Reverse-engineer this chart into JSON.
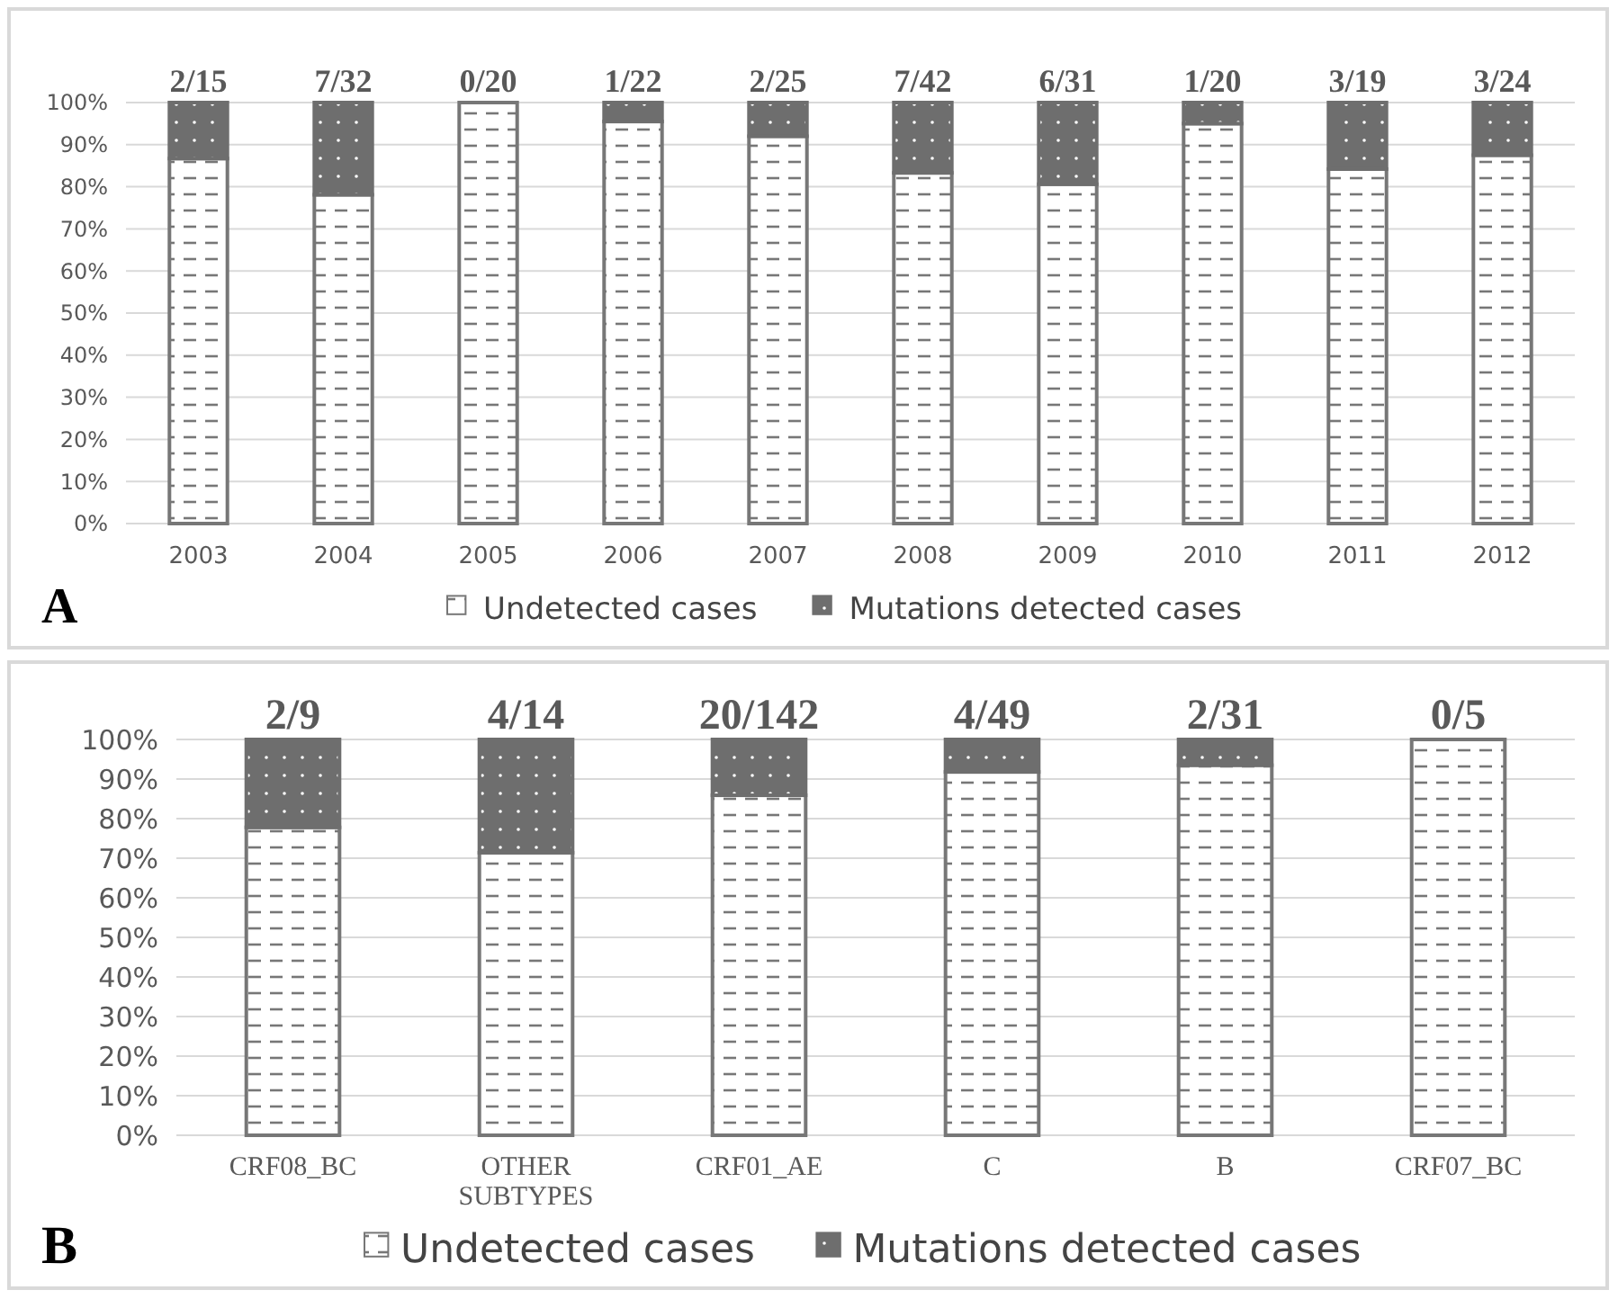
{
  "chart_data": [
    {
      "type": "bar",
      "stacked": true,
      "categories": [
        "2003",
        "2004",
        "2005",
        "2006",
        "2007",
        "2008",
        "2009",
        "2010",
        "2011",
        "2012"
      ],
      "series": [
        {
          "name": "Undetected cases",
          "color": "#777777",
          "values": [
            86.7,
            78.1,
            100,
            95.5,
            92,
            83.3,
            80.6,
            95,
            84.2,
            87.5
          ]
        },
        {
          "name": "Mutations detected cases",
          "color": "#6e6e6e",
          "values": [
            13.3,
            21.9,
            0,
            4.5,
            8,
            16.7,
            19.4,
            5,
            15.8,
            12.5
          ]
        }
      ],
      "ylim": [
        0,
        100
      ],
      "yticks": [
        {
          "value": 0,
          "label": "0%"
        },
        {
          "value": 10,
          "label": "10%"
        },
        {
          "value": 20,
          "label": "20%"
        },
        {
          "value": 30,
          "label": "30%"
        },
        {
          "value": 40,
          "label": "40%"
        },
        {
          "value": 50,
          "label": "50%"
        },
        {
          "value": 60,
          "label": "60%"
        },
        {
          "value": 70,
          "label": "70%"
        },
        {
          "value": 80,
          "label": "80%"
        },
        {
          "value": 90,
          "label": "90%"
        },
        {
          "value": 100,
          "label": "100%"
        }
      ],
      "grid": "y",
      "legend": "bottom",
      "annotations": [
        "A",
        {
          "text": "2/15",
          "x": "2003",
          "y": 100
        },
        {
          "text": "7/32",
          "x": "2004",
          "y": 100
        },
        {
          "text": "0/20",
          "x": "2005",
          "y": 100
        },
        {
          "text": "1/22",
          "x": "2006",
          "y": 100
        },
        {
          "text": "2/25",
          "x": "2007",
          "y": 100
        },
        {
          "text": "7/42",
          "x": "2008",
          "y": 100
        },
        {
          "text": "6/31",
          "x": "2009",
          "y": 100
        },
        {
          "text": "1/20",
          "x": "2010",
          "y": 100
        },
        {
          "text": "3/19",
          "x": "2011",
          "y": 100
        },
        {
          "text": "3/24",
          "x": "2012",
          "y": 100
        }
      ]
    },
    {
      "type": "bar",
      "stacked": true,
      "categories": [
        "CRF08_BC",
        "OTHER SUBTYPES",
        "CRF01_AE",
        "C",
        "B",
        "CRF07_BC"
      ],
      "series": [
        {
          "name": "Undetected cases",
          "color": "#777777",
          "values": [
            77.8,
            71.4,
            85.9,
            91.8,
            93.5,
            100
          ]
        },
        {
          "name": "Mutations detected cases",
          "color": "#6e6e6e",
          "values": [
            22.2,
            28.6,
            14.1,
            8.2,
            6.5,
            0
          ]
        }
      ],
      "ylim": [
        0,
        100
      ],
      "yticks": [
        {
          "value": 0,
          "label": "0%"
        },
        {
          "value": 10,
          "label": "10%"
        },
        {
          "value": 20,
          "label": "20%"
        },
        {
          "value": 30,
          "label": "30%"
        },
        {
          "value": 40,
          "label": "40%"
        },
        {
          "value": 50,
          "label": "50%"
        },
        {
          "value": 60,
          "label": "60%"
        },
        {
          "value": 70,
          "label": "70%"
        },
        {
          "value": 80,
          "label": "80%"
        },
        {
          "value": 90,
          "label": "90%"
        },
        {
          "value": 100,
          "label": "100%"
        }
      ],
      "grid": "y",
      "legend": "bottom",
      "annotations": [
        "B",
        {
          "text": "2/9",
          "x": "CRF08_BC",
          "y": 100
        },
        {
          "text": "4/14",
          "x": "OTHER SUBTYPES",
          "y": 100
        },
        {
          "text": "20/142",
          "x": "CRF01_AE",
          "y": 100
        },
        {
          "text": "4/49",
          "x": "C",
          "y": 100
        },
        {
          "text": "2/31",
          "x": "B",
          "y": 100
        },
        {
          "text": "0/5",
          "x": "CRF07_BC",
          "y": 100
        }
      ]
    }
  ]
}
